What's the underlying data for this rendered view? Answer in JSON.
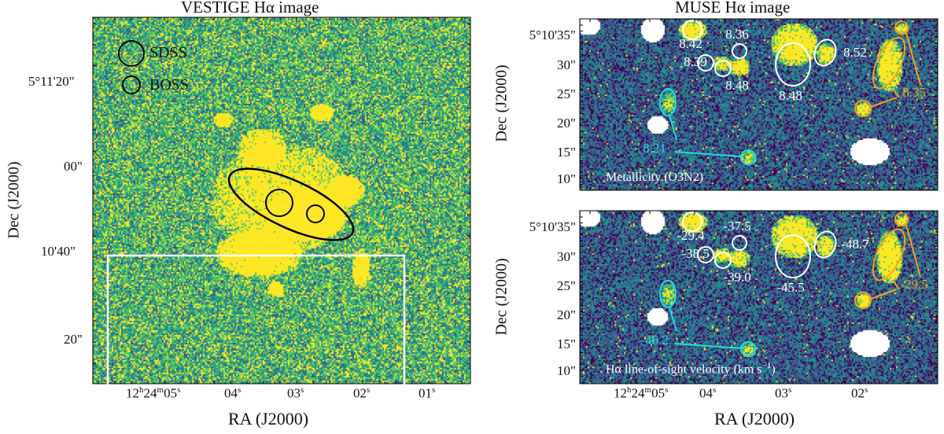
{
  "colors": {
    "background": "#3b2a72",
    "noise": "#2c8c8c",
    "bright": "#f7e625",
    "white_region": "#ffffff",
    "orange": "#f5a31a",
    "cyan": "#1ee0e8",
    "black": "#000000"
  },
  "left_panel": {
    "title": "VESTIGE Hα image",
    "ylabel": "Dec (J2000)",
    "xlabel": "RA (J2000)",
    "yticks": [
      "5°11'20\"",
      "00\"",
      "10'40\"",
      "20\""
    ],
    "xticks": [
      {
        "h": "12",
        "m": "24",
        "s": "05"
      },
      {
        "s": "04"
      },
      {
        "s": "03"
      },
      {
        "s": "02"
      },
      {
        "s": "01"
      }
    ],
    "legend": [
      {
        "label": "SDSS",
        "symbol": "large-circle"
      },
      {
        "label": "BOSS",
        "symbol": "small-circle"
      }
    ]
  },
  "right_panel": {
    "title": "MUSE Hα image",
    "ylabel": "Dec (J2000)",
    "xlabel": "RA (J2000)",
    "yticks": [
      "5°10'35\"",
      "30\"",
      "25\"",
      "20\"",
      "15\"",
      "10\""
    ],
    "xticks": [
      {
        "h": "12",
        "m": "24",
        "s": "05"
      },
      {
        "s": "04"
      },
      {
        "s": "03"
      },
      {
        "s": "02"
      }
    ],
    "top": {
      "caption": "Metallicity (O3N2)",
      "labels": {
        "a": "8.42",
        "b": "8.36",
        "c": "8.39",
        "d": "8.48",
        "e": "8.48",
        "f": "8.52",
        "orange": "8.35",
        "cyan": "8.21"
      }
    },
    "bottom": {
      "caption_prefix": "Hα line-of-sight velocity (km s",
      "caption_sup": "−1",
      "caption_suffix": ")",
      "labels": {
        "a": "-29.4",
        "b": "-37.5",
        "c": "-38.5",
        "d": "-39.0",
        "e": "-45.5",
        "f": "-48.7",
        "orange": "-29.5",
        "cyan": "-46.2"
      }
    }
  }
}
